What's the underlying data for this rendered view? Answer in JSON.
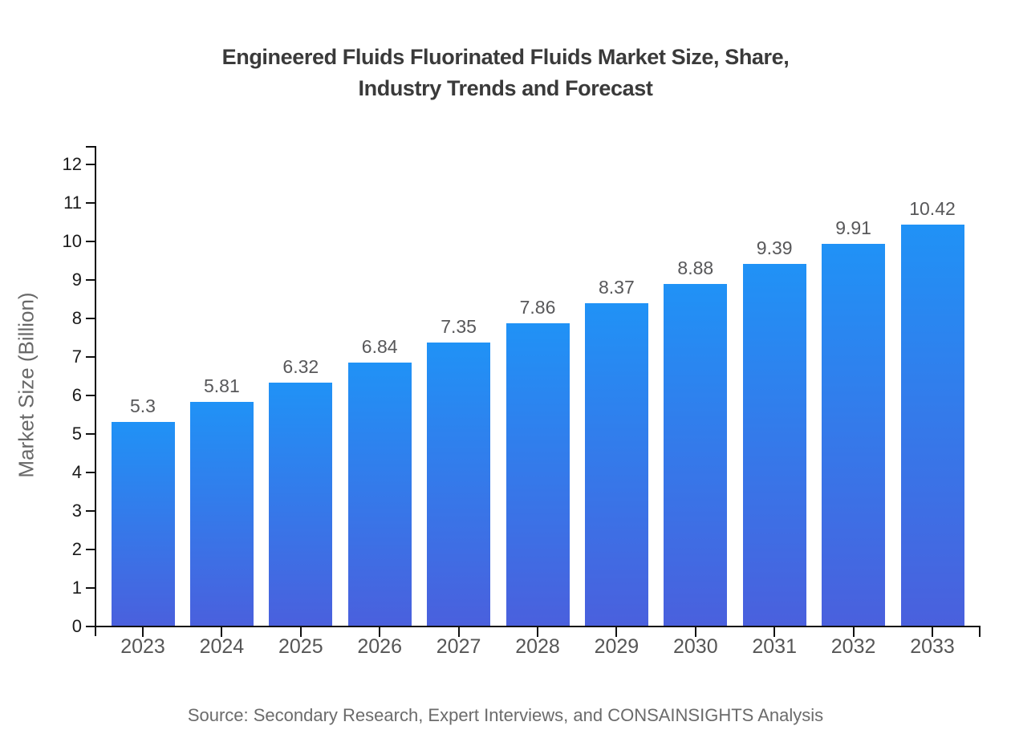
{
  "chart_data": {
    "type": "bar",
    "title": "Engineered Fluids Fluorinated Fluids Market Size, Share,\nIndustry Trends and Forecast",
    "categories": [
      "2023",
      "2024",
      "2025",
      "2026",
      "2027",
      "2028",
      "2029",
      "2030",
      "2031",
      "2032",
      "2033"
    ],
    "values": [
      5.3,
      5.81,
      6.32,
      6.84,
      7.35,
      7.86,
      8.37,
      8.88,
      9.39,
      9.91,
      10.42
    ],
    "value_labels": [
      "5.3",
      "5.81",
      "6.32",
      "6.84",
      "7.35",
      "7.86",
      "8.37",
      "8.88",
      "9.39",
      "9.91",
      "10.42"
    ],
    "xlabel": "",
    "ylabel": "Market Size (Billion)",
    "ylim": [
      0,
      12
    ],
    "ytick_step": 1,
    "grid": false,
    "legend": null,
    "bar_gradient_top": "#2092f6",
    "bar_gradient_bottom": "#4a60dd"
  },
  "source_note": "Source: Secondary Research, Expert Interviews, and CONSAINSIGHTS Analysis",
  "colors": {
    "title": "#3a3a3a",
    "axis": "#111111",
    "ytick_label": "#1a1a1a",
    "xtick_label": "#565656",
    "value_label": "#58585a",
    "ylabel": "#686868",
    "source": "#6b6b6b"
  }
}
